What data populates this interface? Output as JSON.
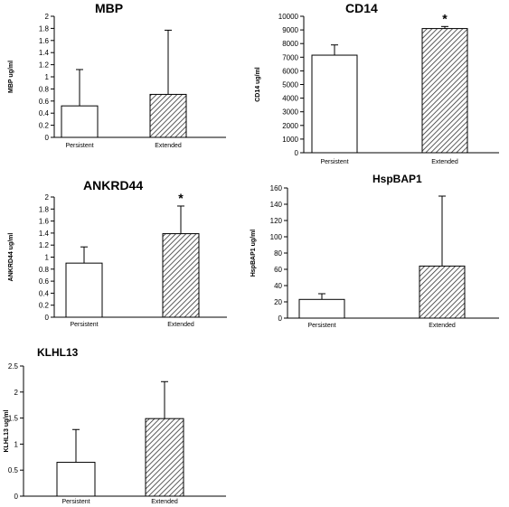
{
  "chart_data": [
    {
      "type": "bar",
      "title": "MBP",
      "ylabel": "MBP ug/ml",
      "categories": [
        "Persistent",
        "Extended"
      ],
      "values": [
        0.52,
        0.71
      ],
      "error_upper": [
        0.6,
        1.06
      ],
      "ylim": [
        0,
        2
      ],
      "yticks": [
        "0",
        "0.2",
        "0.4",
        "0.6",
        "0.8",
        "1",
        "1.2",
        "1.4",
        "1.6",
        "1.8",
        "2"
      ],
      "significant": [
        false,
        false
      ],
      "bar_fill": [
        "white",
        "hatched"
      ]
    },
    {
      "type": "bar",
      "title": "CD14",
      "ylabel": "CD14 ug/ml",
      "categories": [
        "Persistent",
        "Extended"
      ],
      "values": [
        7150,
        9100
      ],
      "error_upper": [
        750,
        150
      ],
      "ylim": [
        0,
        10000
      ],
      "yticks": [
        "0",
        "1000",
        "2000",
        "3000",
        "4000",
        "5000",
        "6000",
        "7000",
        "8000",
        "9000",
        "10000"
      ],
      "significant": [
        false,
        true
      ],
      "significance_marker": "*",
      "bar_fill": [
        "white",
        "hatched"
      ]
    },
    {
      "type": "bar",
      "title": "ANKRD44",
      "ylabel": "ANKRD44 ug/ml",
      "categories": [
        "Persistent",
        "Extended"
      ],
      "values": [
        0.9,
        1.39
      ],
      "error_upper": [
        0.27,
        0.46
      ],
      "ylim": [
        0,
        2
      ],
      "yticks": [
        "0",
        "0.2",
        "0.4",
        "0.6",
        "0.8",
        "1",
        "1.2",
        "1.4",
        "1.6",
        "1.8",
        "2"
      ],
      "significant": [
        false,
        true
      ],
      "significance_marker": "*",
      "bar_fill": [
        "white",
        "hatched"
      ]
    },
    {
      "type": "bar",
      "title": "HspBAP1",
      "ylabel": "HspBAP1 ug/ml",
      "categories": [
        "Persistent",
        "Extended"
      ],
      "values": [
        23,
        64
      ],
      "error_upper": [
        7,
        86
      ],
      "ylim": [
        0,
        160
      ],
      "yticks": [
        "0",
        "20",
        "40",
        "60",
        "80",
        "100",
        "120",
        "140",
        "160"
      ],
      "significant": [
        false,
        false
      ],
      "bar_fill": [
        "white",
        "hatched"
      ]
    },
    {
      "type": "bar",
      "title": "KLHL13",
      "ylabel": "KLHL13 ug/ml",
      "categories": [
        "Persistent",
        "Extended"
      ],
      "values": [
        0.65,
        1.49
      ],
      "error_upper": [
        0.63,
        0.71
      ],
      "ylim": [
        0,
        2.5
      ],
      "yticks": [
        "0",
        "0.5",
        "1",
        "1.5",
        "2",
        "2.5"
      ],
      "significant": [
        false,
        false
      ],
      "bar_fill": [
        "white",
        "hatched"
      ]
    }
  ],
  "colors": {
    "axis": "#000000",
    "bar_fill": "#ffffff",
    "hatch": "#333333"
  }
}
